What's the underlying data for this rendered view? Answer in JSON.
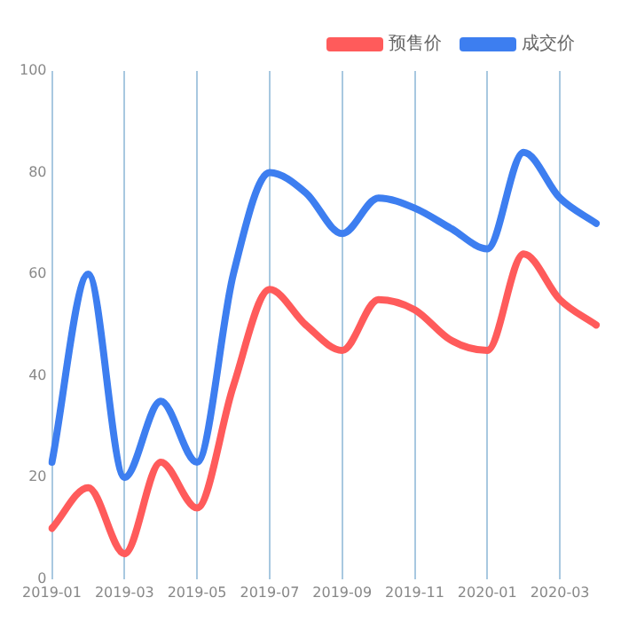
{
  "chart_data": {
    "type": "line",
    "categories": [
      "2019-01",
      null,
      "2019-03",
      null,
      "2019-05",
      null,
      "2019-07",
      null,
      "2019-09",
      null,
      "2019-11",
      null,
      "2020-01",
      null,
      "2020-03",
      null
    ],
    "series": [
      {
        "name": "预售价",
        "color": "#ff5b5b",
        "values": [
          10,
          18,
          5,
          23,
          14,
          38,
          57,
          50,
          45,
          55,
          53,
          47,
          45,
          64,
          55,
          50
        ]
      },
      {
        "name": "成交价",
        "color": "#3d7ef0",
        "values": [
          23,
          60,
          20,
          35,
          23,
          60,
          80,
          76,
          68,
          75,
          73,
          69,
          65,
          84,
          75,
          70
        ]
      }
    ],
    "ylim": [
      0,
      100
    ],
    "yticks": [
      0,
      20,
      40,
      60,
      80,
      100
    ],
    "grid": "x",
    "legend": "top right",
    "marker": "none",
    "line_style": "solid"
  }
}
